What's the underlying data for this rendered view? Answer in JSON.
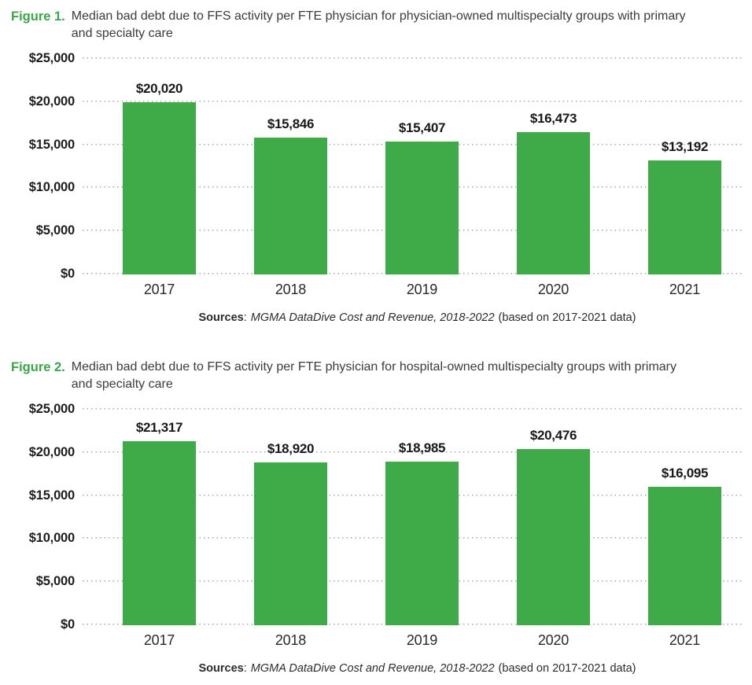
{
  "accent_green": "#3eaa48",
  "text_dark": "#1e1c1d",
  "figures": [
    {
      "label": "Figure 1.",
      "title": "Median bad debt due to FFS activity per FTE physician for physician-owned multispecialty groups with primary and specialty care",
      "sources": {
        "bold": "Sources",
        "sep": ":",
        "italic": "MGMA DataDive Cost and Revenue, 2018-2022",
        "tail": "(based on 2017-2021 data)"
      }
    },
    {
      "label": "Figure 2.",
      "title": "Median bad debt due to FFS activity per FTE physician for hospital-owned multispecialty groups with primary and specialty care",
      "sources": {
        "bold": "Sources",
        "sep": ":",
        "italic": "MGMA DataDive Cost and Revenue, 2018-2022",
        "tail": "(based on 2017-2021 data)"
      }
    }
  ],
  "chart_data": [
    {
      "type": "bar",
      "title": "Figure 1. Median bad debt due to FFS activity per FTE physician for physician-owned multispecialty groups with primary and specialty care",
      "categories": [
        "2017",
        "2018",
        "2019",
        "2020",
        "2021"
      ],
      "values": [
        20020,
        15846,
        15407,
        16473,
        13192
      ],
      "value_labels": [
        "$20,020",
        "$15,846",
        "$15,407",
        "$16,473",
        "$13,192"
      ],
      "xlabel": "",
      "ylabel": "",
      "ylim": [
        0,
        25000
      ],
      "yticks": [
        0,
        5000,
        10000,
        15000,
        20000,
        25000
      ],
      "ytick_labels": [
        "$0",
        "$5,000",
        "$10,000",
        "$15,000",
        "$20,000",
        "$25,000"
      ],
      "bar_color": "#3eaa48",
      "grid": "horizontal-dotted",
      "legend": "none",
      "source_note": "Sources: MGMA DataDive Cost and Revenue, 2018-2022 (based on 2017-2021 data)"
    },
    {
      "type": "bar",
      "title": "Figure 2. Median bad debt due to FFS activity per FTE physician for hospital-owned multispecialty groups with primary and specialty care",
      "categories": [
        "2017",
        "2018",
        "2019",
        "2020",
        "2021"
      ],
      "values": [
        21317,
        18920,
        18985,
        20476,
        16095
      ],
      "value_labels": [
        "$21,317",
        "$18,920",
        "$18,985",
        "$20,476",
        "$16,095"
      ],
      "xlabel": "",
      "ylabel": "",
      "ylim": [
        0,
        25000
      ],
      "yticks": [
        0,
        5000,
        10000,
        15000,
        20000,
        25000
      ],
      "ytick_labels": [
        "$0",
        "$5,000",
        "$10,000",
        "$15,000",
        "$20,000",
        "$25,000"
      ],
      "bar_color": "#3eaa48",
      "grid": "horizontal-dotted",
      "legend": "none",
      "source_note": "Sources: MGMA DataDive Cost and Revenue, 2018-2022 (based on 2017-2021 data)"
    }
  ]
}
